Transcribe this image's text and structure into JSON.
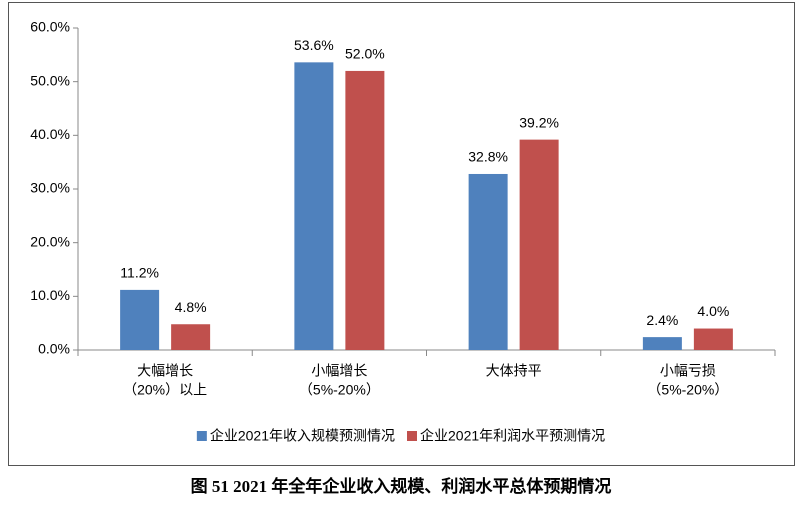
{
  "chart_data": {
    "type": "bar",
    "title": "图 51 2021 年全年企业收入规模、利润水平总体预期情况",
    "categories": [
      [
        "大幅增长",
        "（20%）以上"
      ],
      [
        "小幅增长",
        "（5%-20%）"
      ],
      [
        "大体持平"
      ],
      [
        "小幅亏损",
        "（5%-20%）"
      ]
    ],
    "series": [
      {
        "name": "企业2021年收入规模预测情况",
        "color": "#4f81bd",
        "values": [
          11.2,
          53.6,
          32.8,
          2.4
        ],
        "value_labels": [
          "11.2%",
          "53.6%",
          "32.8%",
          "2.4%"
        ]
      },
      {
        "name": "企业2021年利润水平预测情况",
        "color": "#c0504d",
        "values": [
          4.8,
          52.0,
          39.2,
          4.0
        ],
        "value_labels": [
          "4.8%",
          "52.0%",
          "39.2%",
          "4.0%"
        ]
      }
    ],
    "ylim": [
      0,
      60
    ],
    "yticks": [
      {
        "value": 0,
        "label": "0.0%"
      },
      {
        "value": 10,
        "label": "10.0%"
      },
      {
        "value": 20,
        "label": "20.0%"
      },
      {
        "value": 30,
        "label": "30.0%"
      },
      {
        "value": 40,
        "label": "40.0%"
      },
      {
        "value": 50,
        "label": "50.0%"
      },
      {
        "value": 60,
        "label": "60.0%"
      }
    ],
    "grid": false,
    "legend": "bottom"
  }
}
